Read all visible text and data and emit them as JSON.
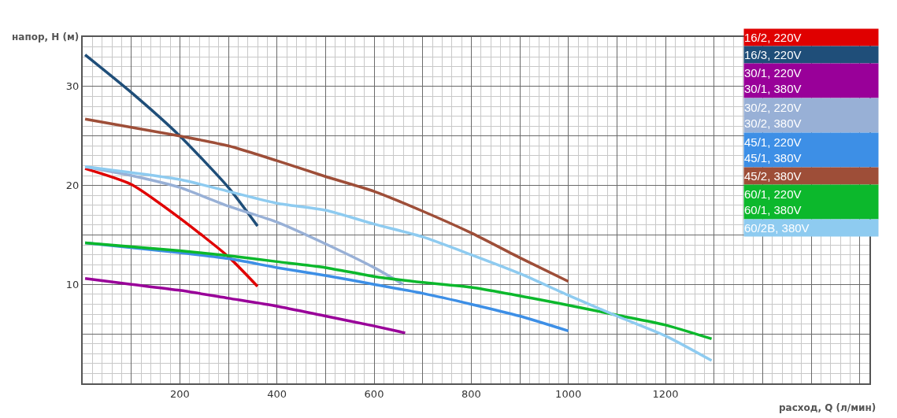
{
  "chart_data": {
    "type": "line",
    "xlabel": "расход, Q (л/мин)",
    "ylabel": "напор, H (м)",
    "xlim": [
      0,
      1620
    ],
    "ylim": [
      0,
      35
    ],
    "xticks": [
      {
        "value": 0,
        "label": null
      },
      {
        "value": 100,
        "label": null
      },
      200,
      {
        "value": 300,
        "label": null
      },
      400,
      {
        "value": 500,
        "label": null
      },
      600,
      {
        "value": 700,
        "label": null
      },
      800,
      {
        "value": 900,
        "label": null
      },
      1000,
      {
        "value": 1100,
        "label": null
      },
      1200,
      {
        "value": 1300,
        "label": null
      },
      {
        "value": 1400,
        "label": null
      },
      {
        "value": 1500,
        "label": null
      },
      {
        "value": 1600,
        "label": null
      }
    ],
    "yticks": [
      {
        "value": 0,
        "label": null
      },
      {
        "value": 5,
        "label": null
      },
      10,
      {
        "value": 15,
        "label": null
      },
      20,
      {
        "value": 25,
        "label": null
      },
      30,
      {
        "value": 35,
        "label": null
      }
    ],
    "grid": true,
    "legend": "top right",
    "marker": "none",
    "line_style": "solid",
    "series": [
      {
        "name": "16/2, 220V",
        "color": "#e00000",
        "x": [
          5,
          100,
          200,
          300,
          360
        ],
        "values": [
          21.7,
          20.1,
          16.7,
          12.8,
          9.8
        ]
      },
      {
        "name": "16/3, 220V",
        "color": "#1f4e79",
        "x": [
          5,
          100,
          200,
          300,
          360
        ],
        "values": [
          33.2,
          29.4,
          25,
          19.8,
          15.9
        ]
      },
      {
        "name": "30/1, 220V\n30/1, 380V",
        "color": "#990099",
        "x": [
          5,
          100,
          200,
          300,
          400,
          500,
          600,
          664
        ],
        "values": [
          10.6,
          10.0,
          9.4,
          8.6,
          7.8,
          6.8,
          5.8,
          5.1
        ]
      },
      {
        "name": "30/2, 220V\n30/2, 380V",
        "color": "#98b0d6",
        "x": [
          5,
          100,
          200,
          300,
          400,
          500,
          600,
          660
        ],
        "values": [
          21.9,
          21.0,
          19.8,
          17.9,
          16.3,
          14.1,
          11.7,
          10.0
        ]
      },
      {
        "name": "45/1, 220V\n45/1, 380V",
        "color": "#3d8fe6",
        "x": [
          5,
          200,
          300,
          400,
          500,
          600,
          700,
          800,
          900,
          1000
        ],
        "values": [
          14.2,
          13.2,
          12.6,
          11.7,
          10.9,
          10.0,
          9.1,
          8.0,
          6.8,
          5.3
        ]
      },
      {
        "name": "45/2, 380V",
        "color": "#9e4e38",
        "x": [
          5,
          200,
          300,
          400,
          500,
          600,
          700,
          800,
          900,
          1000
        ],
        "values": [
          26.7,
          25,
          24.0,
          22.5,
          20.9,
          19.4,
          17.4,
          15.2,
          12.7,
          10.3
        ]
      },
      {
        "name": "60/1, 220V\n60/1, 380V",
        "color": "#0cb82c",
        "x": [
          5,
          200,
          300,
          400,
          500,
          600,
          700,
          800,
          1000,
          1100,
          1200,
          1295
        ],
        "values": [
          14.2,
          13.4,
          12.9,
          12.3,
          11.7,
          10.8,
          10.2,
          9.7,
          7.9,
          6.9,
          5.9,
          4.5
        ]
      },
      {
        "name": "60/2B, 380V",
        "color": "#8ecbf0",
        "x": [
          5,
          200,
          300,
          400,
          500,
          600,
          700,
          800,
          900,
          1000,
          1100,
          1200,
          1295
        ],
        "values": [
          21.9,
          20.6,
          19.4,
          18.2,
          17.5,
          16.1,
          14.8,
          13.0,
          11.1,
          8.9,
          6.8,
          4.8,
          2.3
        ]
      }
    ]
  }
}
